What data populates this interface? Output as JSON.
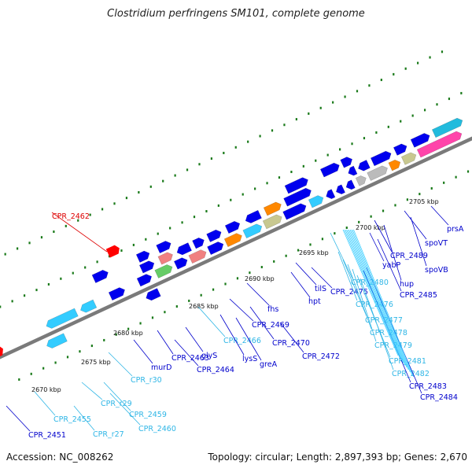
{
  "title": "Clostridium perfringens SM101, complete genome",
  "footer": {
    "accession": "Accession: NC_008262",
    "summary": "Topology: circular; Length: 2,897,393 bp; Genes: 2,670"
  },
  "colors": {
    "backbone": "#7a7a7a",
    "gene_blue": "#0000ee",
    "gene_cyan": "#33ccff",
    "highlight_red": "#ff0000",
    "ticks": "#1a7a1a",
    "label_blue": "#0000cc",
    "label_cyan": "#2fb6e6",
    "label_red": "#dd0000"
  },
  "scale_labels": [
    "2670 kbp",
    "2675 kbp",
    "2680 kbp",
    "2685 kbp",
    "2690 kbp",
    "2695 kbp",
    "2700 kbp",
    "2705 kbp"
  ],
  "gene_labels": [
    {
      "text": "CPR_2462",
      "color": "red"
    },
    {
      "text": "CPR_2451",
      "color": "blue"
    },
    {
      "text": "CPR_2455",
      "color": "cyan"
    },
    {
      "text": "CPR_r27",
      "color": "cyan"
    },
    {
      "text": "CPR_r29",
      "color": "cyan"
    },
    {
      "text": "CPR_2459",
      "color": "cyan"
    },
    {
      "text": "CPR_2460",
      "color": "cyan"
    },
    {
      "text": "CPR_r30",
      "color": "cyan"
    },
    {
      "text": "murD",
      "color": "blue"
    },
    {
      "text": "CPR_2463",
      "color": "blue"
    },
    {
      "text": "CPR_2464",
      "color": "blue"
    },
    {
      "text": "glyS",
      "color": "blue"
    },
    {
      "text": "CPR_2466",
      "color": "cyan"
    },
    {
      "text": "lysS",
      "color": "blue"
    },
    {
      "text": "greA",
      "color": "blue"
    },
    {
      "text": "CPR_2469",
      "color": "blue"
    },
    {
      "text": "fhs",
      "color": "blue"
    },
    {
      "text": "CPR_2470",
      "color": "blue"
    },
    {
      "text": "hpt",
      "color": "blue"
    },
    {
      "text": "tilS",
      "color": "blue"
    },
    {
      "text": "CPR_2472",
      "color": "blue"
    },
    {
      "text": "CPR_2475",
      "color": "blue"
    },
    {
      "text": "CPR_2480",
      "color": "cyan"
    },
    {
      "text": "CPR_2476",
      "color": "cyan"
    },
    {
      "text": "CPR_2477",
      "color": "cyan"
    },
    {
      "text": "CPR_2478",
      "color": "cyan"
    },
    {
      "text": "CPR_2479",
      "color": "cyan"
    },
    {
      "text": "CPR_2481",
      "color": "cyan"
    },
    {
      "text": "CPR_2482",
      "color": "cyan"
    },
    {
      "text": "CPR_2483",
      "color": "blue"
    },
    {
      "text": "CPR_2484",
      "color": "blue"
    },
    {
      "text": "yabP",
      "color": "blue"
    },
    {
      "text": "CPR_2489",
      "color": "blue"
    },
    {
      "text": "hup",
      "color": "blue"
    },
    {
      "text": "CPR_2485",
      "color": "blue"
    },
    {
      "text": "spoVT",
      "color": "blue"
    },
    {
      "text": "spoVB",
      "color": "blue"
    },
    {
      "text": "prsA",
      "color": "blue"
    }
  ]
}
